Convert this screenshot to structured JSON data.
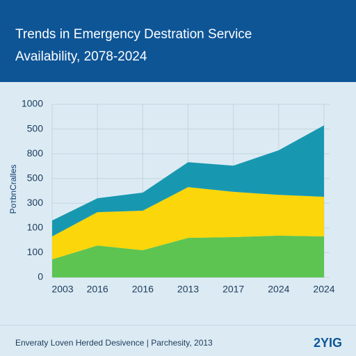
{
  "chart_data": {
    "type": "stacked_area",
    "title_lines": [
      "Trends in Emergency Destration Service",
      "Availability, 2078-2024"
    ],
    "y_label": "PoтbnCralles",
    "footer": "Enveraty Loven Herded Desivence | Parchesity, 2013",
    "logo": "2YIG",
    "categories": [
      "2003",
      "2016",
      "2016",
      "2013",
      "2017",
      "2024",
      "2024"
    ],
    "series": [
      {
        "color": "#5dc452",
        "values": [
          73,
          129,
          110,
          160,
          163,
          169,
          166
        ]
      },
      {
        "color": "#fad60a",
        "values": [
          93,
          135,
          160,
          205,
          183,
          165,
          160
        ]
      },
      {
        "color": "#1898b0",
        "values": [
          64,
          56,
          73,
          101,
          106,
          180,
          289
        ]
      }
    ],
    "ylim": [
      0,
      700
    ],
    "yticks": [
      0,
      100,
      {
        "value": 200,
        "label": "100"
      },
      300,
      {
        "value": 400,
        "label": "500"
      },
      {
        "value": 500,
        "label": "800"
      },
      {
        "value": 600,
        "label": "500"
      },
      {
        "value": 700,
        "label": "1000"
      }
    ],
    "grid": true
  }
}
